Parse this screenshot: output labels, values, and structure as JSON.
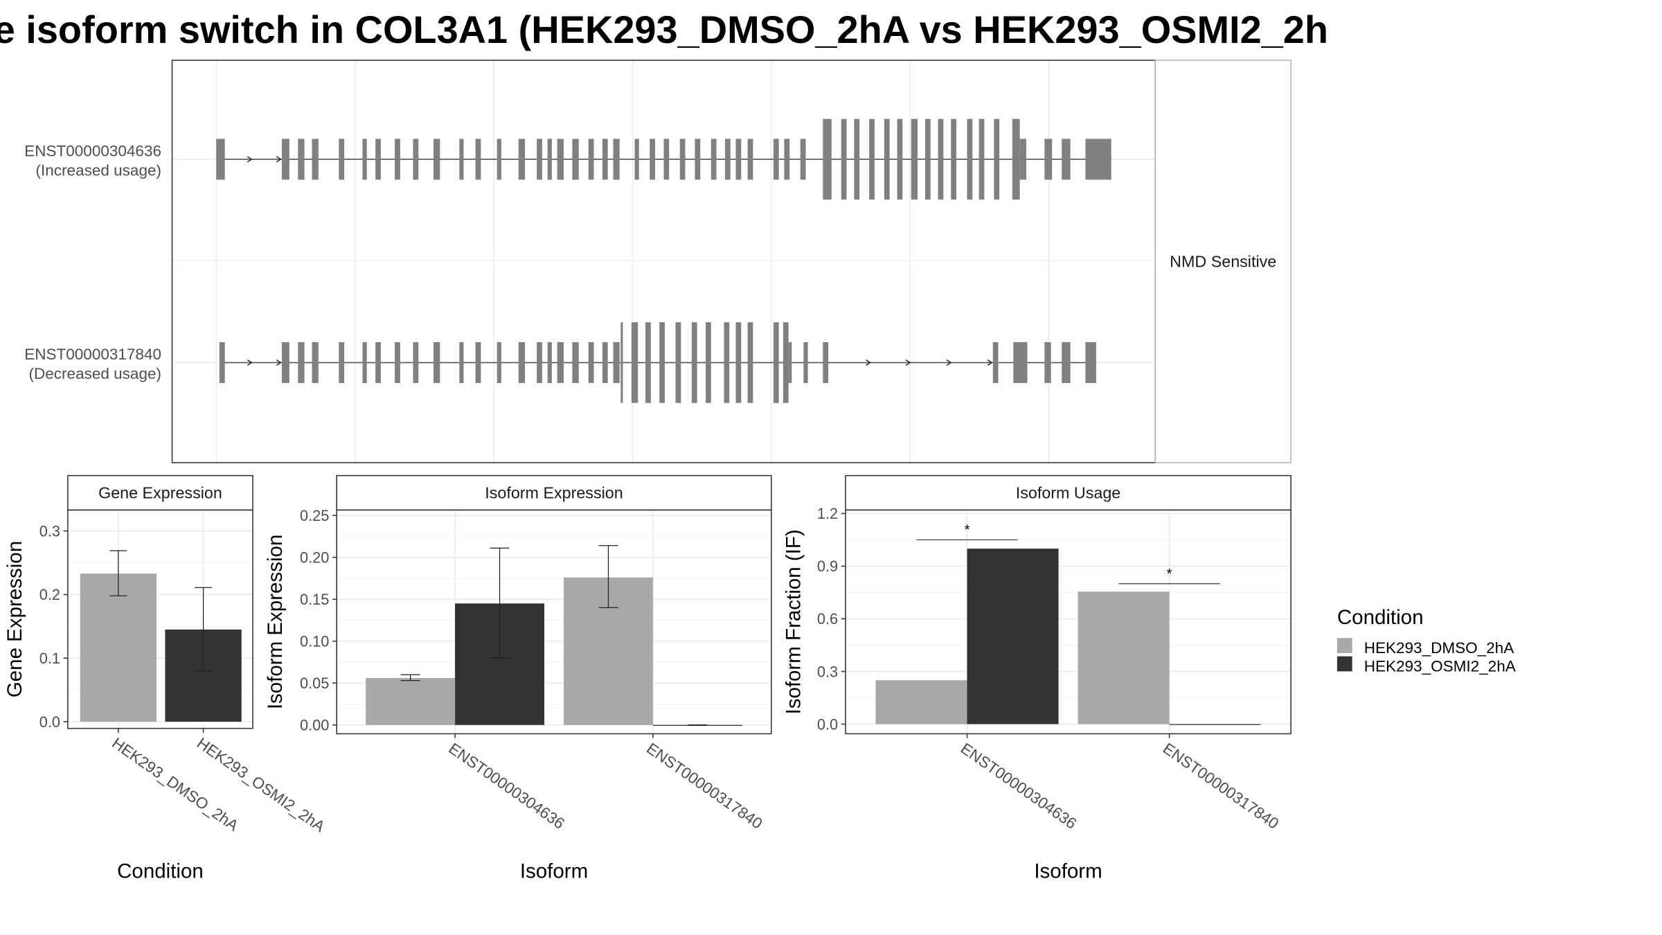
{
  "title": "e isoform switch in COL3A1 (HEK293_DMSO_2hA vs HEK293_OSMI2_2h",
  "colors": {
    "dmso": "#a8a8a8",
    "osmi2": "#333333",
    "structure": "#808080"
  },
  "chart_data": [
    {
      "type": "gene-structure",
      "facet_label": "NMD Sensitive",
      "transcripts": [
        {
          "id": "ENST00000304636",
          "label": "ENST00000304636",
          "sublabel": "(Increased usage)",
          "exons": [
            [
              201,
              209,
              false
            ],
            [
              262,
              269,
              false
            ],
            [
              277,
              283,
              false
            ],
            [
              290,
              296,
              false
            ],
            [
              315,
              320,
              false
            ],
            [
              337,
              341,
              false
            ],
            [
              349,
              354,
              false
            ],
            [
              367,
              372,
              false
            ],
            [
              384,
              389,
              false
            ],
            [
              403,
              409,
              false
            ],
            [
              427,
              431,
              false
            ],
            [
              442,
              447,
              false
            ],
            [
              462,
              466,
              false
            ],
            [
              482,
              488,
              false
            ],
            [
              499,
              504,
              false
            ],
            [
              509,
              513,
              false
            ],
            [
              518,
              524,
              false
            ],
            [
              532,
              538,
              false
            ],
            [
              547,
              552,
              false
            ],
            [
              560,
              565,
              false
            ],
            [
              570,
              576,
              false
            ],
            [
              590,
              594,
              false
            ],
            [
              604,
              609,
              false
            ],
            [
              617,
              622,
              false
            ],
            [
              632,
              637,
              false
            ],
            [
              646,
              651,
              false
            ],
            [
              661,
              666,
              false
            ],
            [
              674,
              679,
              false
            ],
            [
              684,
              689,
              false
            ],
            [
              695,
              700,
              false
            ],
            [
              719,
              724,
              false
            ],
            [
              729,
              734,
              false
            ],
            [
              744,
              749,
              false
            ],
            [
              765,
              773,
              true
            ],
            [
              782,
              787,
              true
            ],
            [
              794,
              799,
              true
            ],
            [
              808,
              813,
              true
            ],
            [
              822,
              827,
              true
            ],
            [
              834,
              839,
              true
            ],
            [
              847,
              853,
              true
            ],
            [
              860,
              865,
              true
            ],
            [
              872,
              877,
              true
            ],
            [
              884,
              889,
              true
            ],
            [
              899,
              904,
              true
            ],
            [
              910,
              915,
              true
            ],
            [
              924,
              929,
              true
            ],
            [
              941,
              948,
              true
            ],
            [
              948,
              954,
              false
            ],
            [
              971,
              978,
              false
            ],
            [
              987,
              995,
              false
            ],
            [
              1009,
              1033,
              false
            ]
          ],
          "arrows": [
            233,
            260
          ]
        },
        {
          "id": "ENST00000317840",
          "label": "ENST00000317840",
          "sublabel": "(Decreased usage)",
          "exons": [
            [
              204,
              209,
              false
            ],
            [
              262,
              269,
              false
            ],
            [
              277,
              283,
              false
            ],
            [
              290,
              296,
              false
            ],
            [
              315,
              320,
              false
            ],
            [
              337,
              341,
              false
            ],
            [
              349,
              354,
              false
            ],
            [
              367,
              372,
              false
            ],
            [
              384,
              389,
              false
            ],
            [
              403,
              409,
              false
            ],
            [
              427,
              431,
              false
            ],
            [
              442,
              447,
              false
            ],
            [
              462,
              466,
              false
            ],
            [
              482,
              488,
              false
            ],
            [
              499,
              504,
              false
            ],
            [
              509,
              513,
              false
            ],
            [
              518,
              524,
              false
            ],
            [
              532,
              538,
              false
            ],
            [
              547,
              552,
              false
            ],
            [
              560,
              565,
              false
            ],
            [
              570,
              576,
              false
            ],
            [
              577,
              579,
              true
            ],
            [
              587,
              593,
              true
            ],
            [
              600,
              605,
              true
            ],
            [
              613,
              618,
              true
            ],
            [
              628,
              633,
              true
            ],
            [
              643,
              648,
              true
            ],
            [
              656,
              661,
              true
            ],
            [
              673,
              678,
              true
            ],
            [
              684,
              689,
              true
            ],
            [
              695,
              700,
              true
            ],
            [
              719,
              724,
              true
            ],
            [
              728,
              733,
              true
            ],
            [
              733,
              736,
              false
            ],
            [
              747,
              751,
              false
            ],
            [
              765,
              770,
              false
            ],
            [
              923,
              928,
              false
            ],
            [
              942,
              955,
              false
            ],
            [
              971,
              977,
              false
            ],
            [
              987,
              995,
              false
            ],
            [
              1009,
              1019,
              false
            ]
          ],
          "arrows": [
            233,
            260,
            808,
            845,
            883,
            921
          ]
        }
      ]
    },
    {
      "type": "bar",
      "panel": "Gene Expression",
      "xlabel": "Condition",
      "ylabel": "Gene Expression",
      "ylim": [
        -0.0105,
        0.333
      ],
      "yticks": [
        0.0,
        0.1,
        0.2,
        0.3
      ],
      "ytick_labels": [
        "0.0",
        "0.1",
        "0.2",
        "0.3"
      ],
      "categories": [
        "HEK293_DMSO_2hA",
        "HEK293_OSMI2_2hA"
      ],
      "values": [
        0.233,
        0.145
      ],
      "errors": [
        [
          0.198,
          0.269
        ],
        [
          0.08,
          0.211
        ]
      ],
      "fills": [
        "dmso",
        "osmi2"
      ]
    },
    {
      "type": "bar",
      "panel": "Isoform Expression",
      "xlabel": "Isoform",
      "ylabel": "Isoform Expression",
      "ylim": [
        -0.0105,
        0.2565
      ],
      "yticks": [
        0.0,
        0.05,
        0.1,
        0.15,
        0.2,
        0.25
      ],
      "ytick_labels": [
        "0.00",
        "0.05",
        "0.10",
        "0.15",
        "0.20",
        "0.25"
      ],
      "categories": [
        "ENST00000304636",
        "ENST00000317840"
      ],
      "series": [
        {
          "name": "HEK293_DMSO_2hA",
          "values": [
            0.056,
            0.176
          ],
          "errors": [
            [
              0.053,
              0.06
            ],
            [
              0.14,
              0.214
            ]
          ]
        },
        {
          "name": "HEK293_OSMI2_2hA",
          "values": [
            0.145,
            0.0
          ],
          "errors": [
            [
              0.08,
              0.211
            ],
            [
              0.0,
              0.0
            ]
          ]
        }
      ]
    },
    {
      "type": "bar",
      "panel": "Isoform Usage",
      "xlabel": "Isoform",
      "ylabel": "Isoform Fraction (IF)",
      "ylim": [
        -0.055,
        1.22
      ],
      "yticks": [
        0.0,
        0.3,
        0.6,
        0.9,
        1.2
      ],
      "ytick_labels": [
        "0.0",
        "0.3",
        "0.6",
        "0.9",
        "1.2"
      ],
      "categories": [
        "ENST00000304636",
        "ENST00000317840"
      ],
      "series": [
        {
          "name": "HEK293_DMSO_2hA",
          "values": [
            0.25,
            0.755
          ]
        },
        {
          "name": "HEK293_OSMI2_2hA",
          "values": [
            1.0,
            0.0
          ]
        }
      ],
      "significance": [
        {
          "category": "ENST00000304636",
          "y": 1.05,
          "label": "*"
        },
        {
          "category": "ENST00000317840",
          "y": 0.8,
          "label": "*"
        }
      ]
    }
  ],
  "legend": {
    "title": "Condition",
    "items": [
      {
        "label": "HEK293_DMSO_2hA",
        "color": "dmso"
      },
      {
        "label": "HEK293_OSMI2_2hA",
        "color": "osmi2"
      }
    ]
  }
}
